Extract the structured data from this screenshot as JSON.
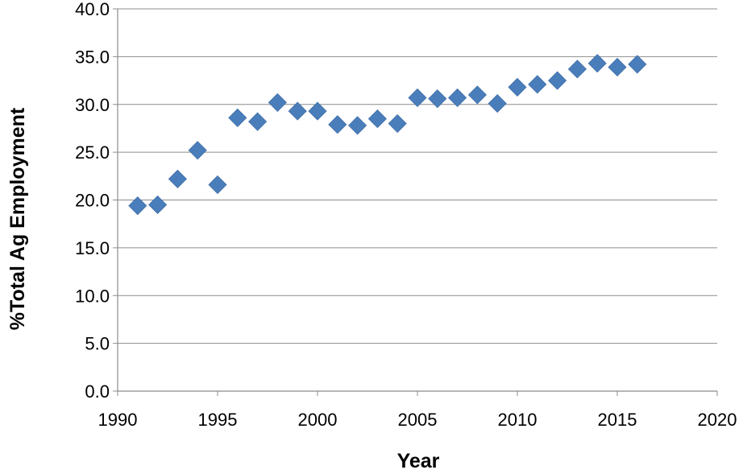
{
  "chart_data": {
    "type": "scatter",
    "title": "",
    "xlabel": "Year",
    "ylabel": "%Total Ag Employment",
    "xlim": [
      1990,
      2020
    ],
    "ylim": [
      0,
      40
    ],
    "x_ticks": [
      1990,
      1995,
      2000,
      2005,
      2010,
      2015,
      2020
    ],
    "y_ticks": [
      "0.0",
      "5.0",
      "10.0",
      "15.0",
      "20.0",
      "25.0",
      "30.0",
      "35.0",
      "40.0"
    ],
    "grid": "horizontal",
    "legend": "none",
    "marker": "diamond",
    "marker_color": "#4a7ebb",
    "series": [
      {
        "x": [
          1991,
          1992,
          1993,
          1994,
          1995,
          1996,
          1997,
          1998,
          1999,
          2000,
          2001,
          2002,
          2003,
          2004,
          2005,
          2006,
          2007,
          2008,
          2009,
          2010,
          2011,
          2012,
          2013,
          2014,
          2015,
          2016
        ],
        "y": [
          19.4,
          19.5,
          22.2,
          25.2,
          21.6,
          28.6,
          28.2,
          30.2,
          29.3,
          29.3,
          27.9,
          27.8,
          28.5,
          28.0,
          30.7,
          30.6,
          30.7,
          31.0,
          30.1,
          31.8,
          32.1,
          32.5,
          33.7,
          34.3,
          33.9,
          34.2
        ]
      }
    ]
  }
}
